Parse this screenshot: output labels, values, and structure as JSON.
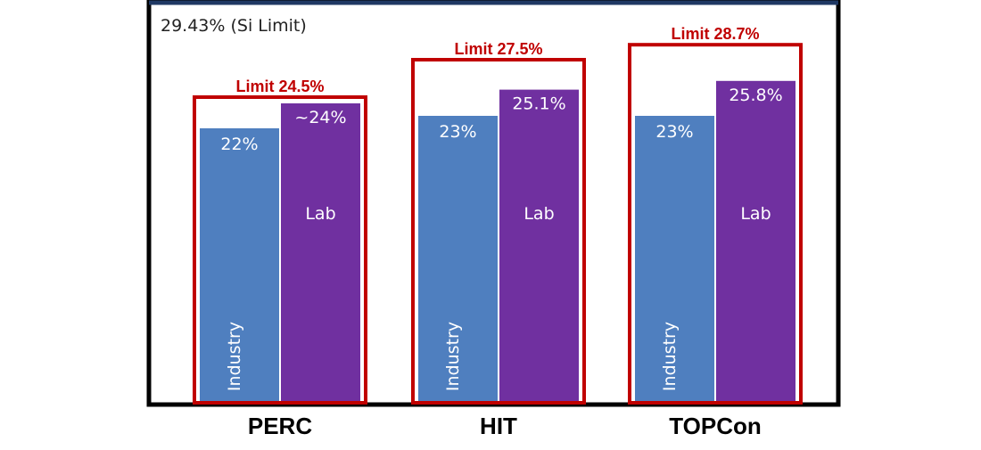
{
  "chart_data": {
    "type": "bar",
    "title": "",
    "xlabel": "",
    "ylabel": "",
    "ylim": [
      0,
      30
    ],
    "grid": false,
    "annotation": "29.43% (Si Limit)",
    "categories": [
      "PERC",
      "HIT",
      "TOPCon"
    ],
    "series": [
      {
        "name": "Industry",
        "color": "#4f7fbf",
        "values": [
          22,
          23,
          23
        ],
        "value_labels": [
          "22%",
          "23%",
          "23%"
        ]
      },
      {
        "name": "Lab",
        "color": "#7030a0",
        "values": [
          24,
          25.1,
          25.8
        ],
        "value_labels": [
          "~24%",
          "25.1%",
          "25.8%"
        ]
      }
    ],
    "limits": {
      "color": "#c00000",
      "values": [
        24.5,
        27.5,
        28.7
      ],
      "labels": [
        "Limit 24.5%",
        "Limit 27.5%",
        "Limit 28.7%"
      ]
    }
  }
}
